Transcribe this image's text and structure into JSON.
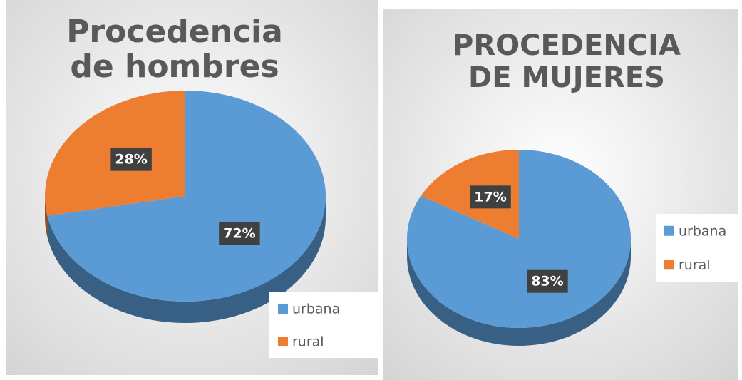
{
  "chart_data": [
    {
      "type": "pie",
      "title": "Procedencia de hombres",
      "categories": [
        "urbana",
        "rural"
      ],
      "values": [
        72,
        28
      ],
      "value_labels": [
        "72%",
        "28%"
      ],
      "colors": [
        "#5b9bd5",
        "#ed7d31"
      ],
      "legend": "bottom-right"
    },
    {
      "type": "pie",
      "title": "PROCEDENCIA DE MUJERES",
      "categories": [
        "urbana",
        "rural"
      ],
      "values": [
        83,
        17
      ],
      "value_labels": [
        "83%",
        "17%"
      ],
      "colors": [
        "#5b9bd5",
        "#ed7d31"
      ],
      "legend": "right"
    }
  ]
}
